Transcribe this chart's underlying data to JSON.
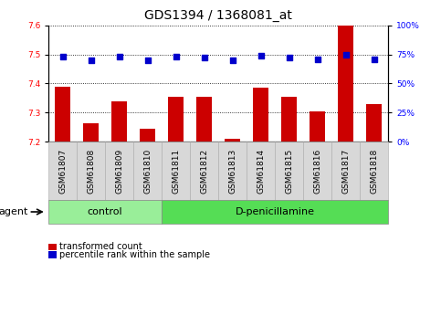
{
  "title": "GDS1394 / 1368081_at",
  "categories": [
    "GSM61807",
    "GSM61808",
    "GSM61809",
    "GSM61810",
    "GSM61811",
    "GSM61812",
    "GSM61813",
    "GSM61814",
    "GSM61815",
    "GSM61816",
    "GSM61817",
    "GSM61818"
  ],
  "bar_values": [
    7.39,
    7.265,
    7.34,
    7.245,
    7.355,
    7.355,
    7.21,
    7.385,
    7.355,
    7.305,
    7.6,
    7.33
  ],
  "bar_color": "#cc0000",
  "dot_values": [
    73,
    70,
    73,
    70,
    73,
    72,
    70,
    74,
    72,
    71,
    75,
    71
  ],
  "dot_color": "#0000cc",
  "ylim_left": [
    7.2,
    7.6
  ],
  "ylim_right": [
    0,
    100
  ],
  "yticks_left": [
    7.2,
    7.3,
    7.4,
    7.5,
    7.6
  ],
  "yticks_right": [
    0,
    25,
    50,
    75,
    100
  ],
  "groups": [
    {
      "label": "control",
      "start": 0,
      "end": 3,
      "color": "#99ee99"
    },
    {
      "label": "D-penicillamine",
      "start": 4,
      "end": 11,
      "color": "#55dd55"
    }
  ],
  "legend_items": [
    {
      "label": "transformed count",
      "color": "#cc0000"
    },
    {
      "label": "percentile rank within the sample",
      "color": "#0000cc"
    }
  ],
  "bar_width": 0.55,
  "baseline": 7.2,
  "tick_label_fontsize": 6.5,
  "title_fontsize": 10,
  "group_fontsize": 8,
  "legend_fontsize": 7
}
